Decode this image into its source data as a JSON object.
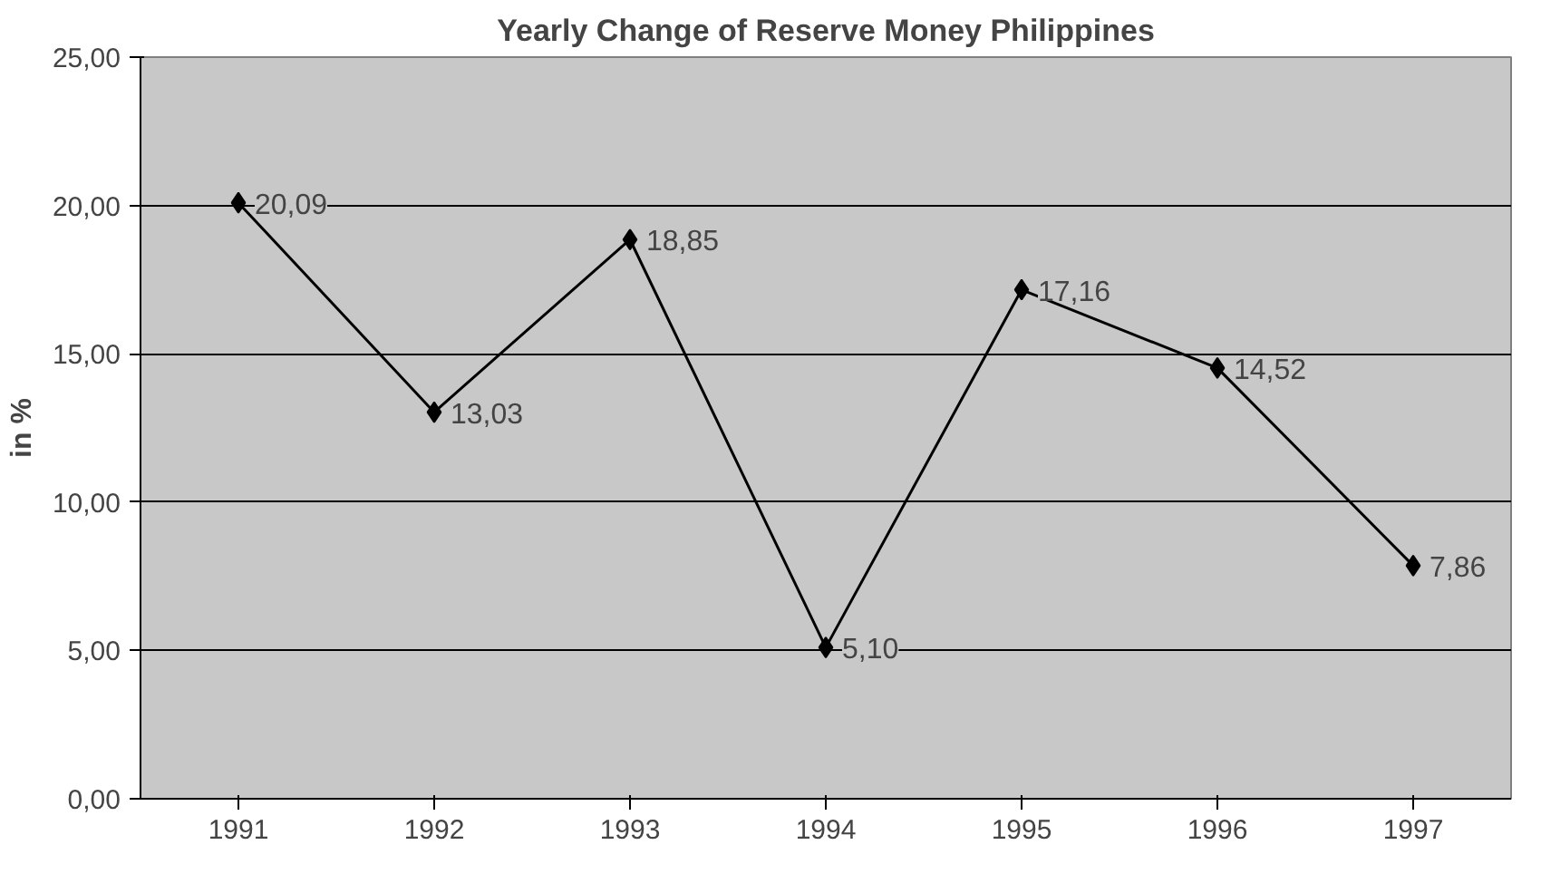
{
  "chart_data": {
    "type": "line",
    "title": "Yearly Change of Reserve Money Philippines",
    "ylabel": "in %",
    "categories": [
      "1991",
      "1992",
      "1993",
      "1994",
      "1995",
      "1996",
      "1997"
    ],
    "series": [
      {
        "color": "#000000",
        "values": [
          20.09,
          13.03,
          18.85,
          5.1,
          17.16,
          14.52,
          7.86
        ],
        "value_labels": [
          "20,09",
          "13,03",
          "18,85",
          "5,10",
          "17,16",
          "14,52",
          "7,86"
        ]
      }
    ],
    "ylim": [
      0,
      25
    ],
    "yticks": [
      {
        "value": 0,
        "label": "0,00"
      },
      {
        "value": 5,
        "label": "5,00"
      },
      {
        "value": 10,
        "label": "10,00"
      },
      {
        "value": 15,
        "label": "15,00"
      },
      {
        "value": 20,
        "label": "20,00"
      },
      {
        "value": 25,
        "label": "25,00"
      }
    ],
    "grid": "y",
    "marker": "diamond",
    "line_style": "solid"
  }
}
